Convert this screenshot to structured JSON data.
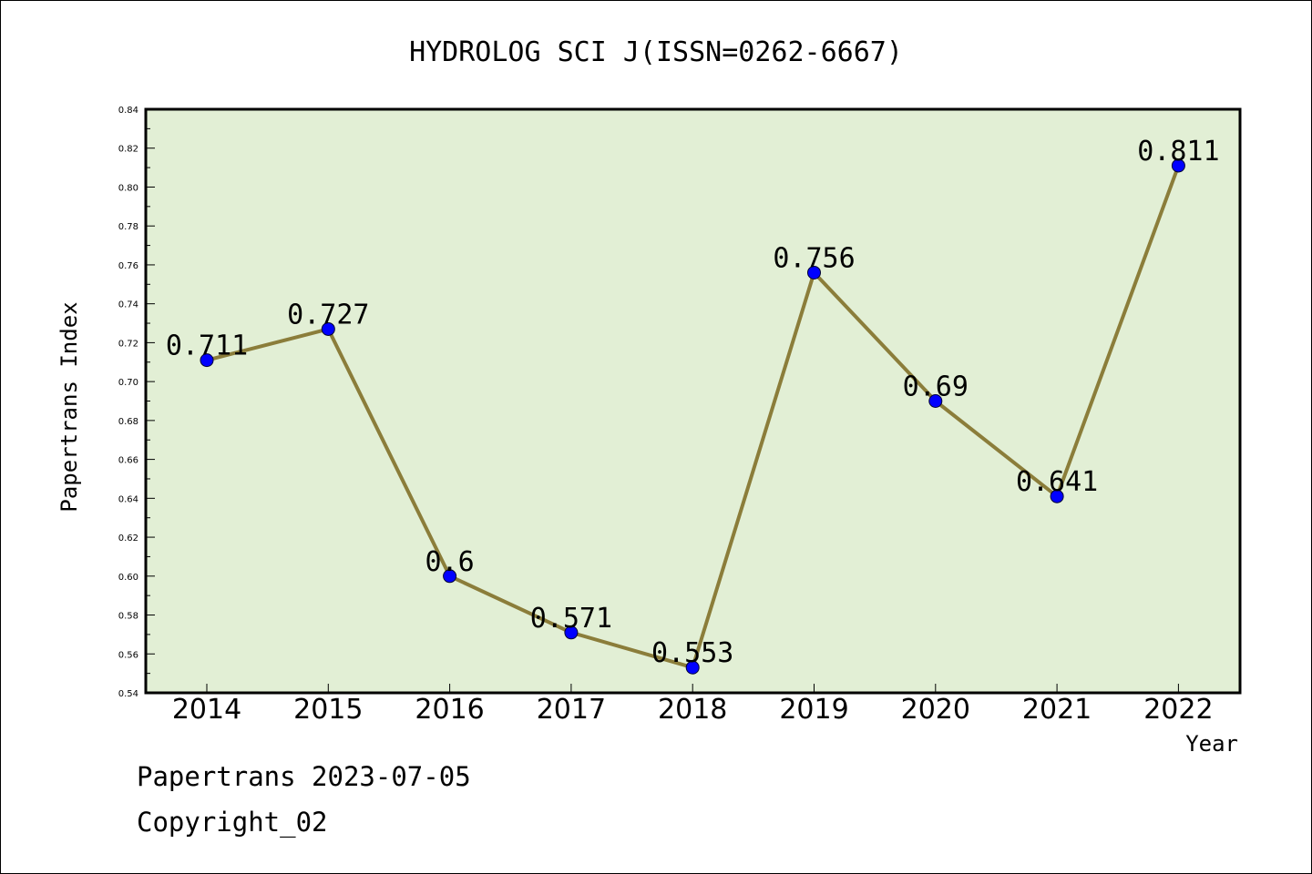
{
  "chart_data": {
    "type": "line",
    "title": "HYDROLOG SCI J(ISSN=0262-6667)",
    "xlabel": "Year",
    "ylabel": "Papertrans Index",
    "categories": [
      "2014",
      "2015",
      "2016",
      "2017",
      "2018",
      "2019",
      "2020",
      "2021",
      "2022"
    ],
    "values": [
      0.711,
      0.727,
      0.6,
      0.571,
      0.553,
      0.756,
      0.69,
      0.641,
      0.811
    ],
    "data_labels": [
      "0.711",
      "0.727",
      "0.6",
      "0.571",
      "0.553",
      "0.756",
      "0.69",
      "0.641",
      "0.811"
    ],
    "ylim": [
      0.54,
      0.84
    ],
    "yticks": [
      "0.54",
      "0.56",
      "0.58",
      "0.60",
      "0.62",
      "0.64",
      "0.66",
      "0.68",
      "0.70",
      "0.72",
      "0.74",
      "0.76",
      "0.78",
      "0.80",
      "0.82",
      "0.84"
    ],
    "grid": false,
    "legend": "none",
    "colors": {
      "plot_background": "#e2efd5",
      "line": "#8b7d3a",
      "marker": "#0000ff"
    }
  },
  "footer": {
    "line1": "Papertrans 2023-07-05",
    "line2": "Copyright_02"
  }
}
